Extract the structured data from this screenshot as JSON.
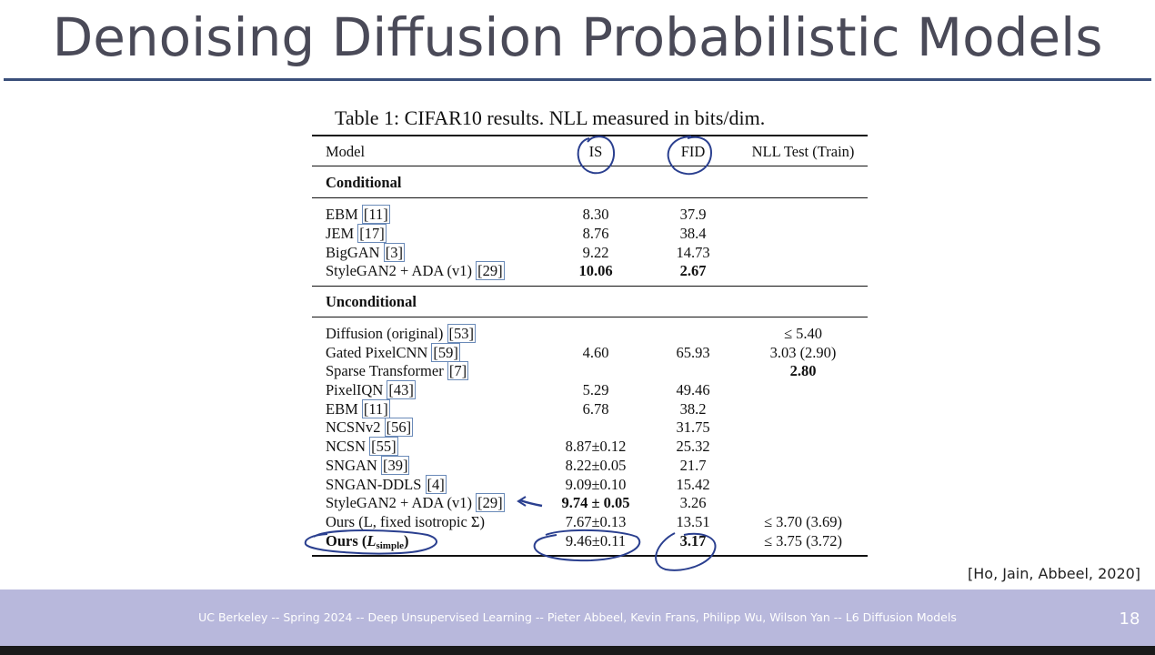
{
  "slide": {
    "title": "Denoising Diffusion Probabilistic Models",
    "citation": "[Ho, Jain, Abbeel, 2020]",
    "footer": "UC Berkeley -- Spring 2024 -- Deep Unsupervised Learning -- Pieter Abbeel, Kevin Frans, Philipp Wu, Wilson Yan  -- L6 Diffusion Models",
    "page_number": "18"
  },
  "table": {
    "caption": "Table 1: CIFAR10 results. NLL measured in bits/dim.",
    "headers": {
      "model": "Model",
      "is": "IS",
      "fid": "FID",
      "nll": "NLL Test (Train)"
    },
    "sections": {
      "conditional": "Conditional",
      "unconditional": "Unconditional"
    },
    "conditional_rows": [
      {
        "name": "EBM",
        "cite": "[11]",
        "is": "8.30",
        "fid": "37.9",
        "nll": ""
      },
      {
        "name": "JEM",
        "cite": "[17]",
        "is": "8.76",
        "fid": "38.4",
        "nll": ""
      },
      {
        "name": "BigGAN",
        "cite": "[3]",
        "is": "9.22",
        "fid": "14.73",
        "nll": ""
      },
      {
        "name": "StyleGAN2 + ADA (v1)",
        "cite": "[29]",
        "is": "10.06",
        "fid": "2.67",
        "nll": ""
      }
    ],
    "unconditional_rows": [
      {
        "name": "Diffusion (original)",
        "cite": "[53]",
        "is": "",
        "fid": "",
        "nll": "≤ 5.40"
      },
      {
        "name": "Gated PixelCNN",
        "cite": "[59]",
        "is": "4.60",
        "fid": "65.93",
        "nll": "3.03 (2.90)"
      },
      {
        "name": "Sparse Transformer",
        "cite": "[7]",
        "is": "",
        "fid": "",
        "nll": "2.80"
      },
      {
        "name": "PixelIQN",
        "cite": "[43]",
        "is": "5.29",
        "fid": "49.46",
        "nll": ""
      },
      {
        "name": "EBM",
        "cite": "[11]",
        "is": "6.78",
        "fid": "38.2",
        "nll": ""
      },
      {
        "name": "NCSNv2",
        "cite": "[56]",
        "is": "",
        "fid": "31.75",
        "nll": ""
      },
      {
        "name": "NCSN",
        "cite": "[55]",
        "is": "8.87±0.12",
        "fid": "25.32",
        "nll": ""
      },
      {
        "name": "SNGAN",
        "cite": "[39]",
        "is": "8.22±0.05",
        "fid": "21.7",
        "nll": ""
      },
      {
        "name": "SNGAN-DDLS",
        "cite": "[4]",
        "is": "9.09±0.10",
        "fid": "15.42",
        "nll": ""
      },
      {
        "name": "StyleGAN2 + ADA (v1)",
        "cite": "[29]",
        "is": "9.74 ± 0.05",
        "fid": "3.26",
        "nll": ""
      },
      {
        "name": "Ours (L, fixed isotropic Σ)",
        "cite": "",
        "is": "7.67±0.13",
        "fid": "13.51",
        "nll": "≤ 3.70 (3.69)"
      }
    ],
    "last_row": {
      "name_prefix": "Ours (",
      "L": "L",
      "sub": "simple",
      "name_suffix": ")",
      "is": "9.46±0.11",
      "fid": "3.17",
      "nll": "≤ 3.75 (3.72)"
    }
  }
}
